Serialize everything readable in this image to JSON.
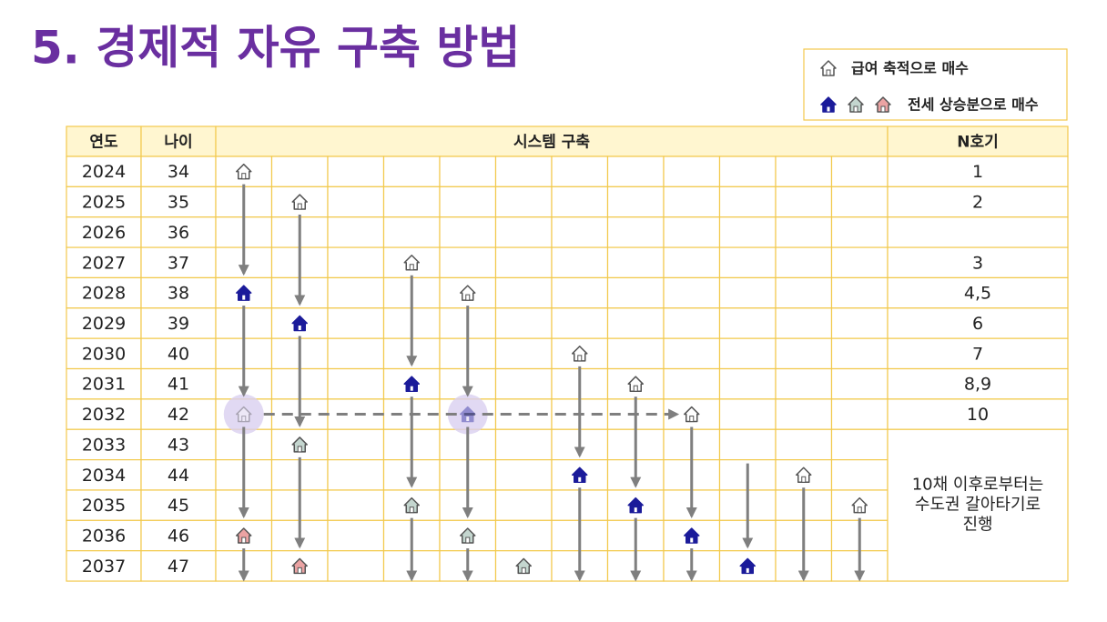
{
  "title": "5. 경제적 자유 구축 방법",
  "legend": [
    {
      "label": "급여 축적으로 매수"
    },
    {
      "label": "전세 상승분으로 매수"
    }
  ],
  "table": {
    "headers": [
      "연도",
      "나이",
      "시스템 구축",
      "N호기"
    ],
    "rows": [
      {
        "year": 2024,
        "age": 34,
        "n": "1"
      },
      {
        "year": 2025,
        "age": 35,
        "n": "2"
      },
      {
        "year": 2026,
        "age": 36
      },
      {
        "year": 2027,
        "age": 37,
        "n": "3"
      },
      {
        "year": 2028,
        "age": 38,
        "n": "4,5"
      },
      {
        "year": 2029,
        "age": 39,
        "n": "6"
      },
      {
        "year": 2030,
        "age": 40,
        "n": "7"
      },
      {
        "year": 2031,
        "age": 41,
        "n": "8,9"
      },
      {
        "year": 2032,
        "age": 42,
        "n": "10"
      },
      {
        "year": 2033,
        "age": 43
      },
      {
        "year": 2034,
        "age": 44
      },
      {
        "year": 2035,
        "age": 45
      },
      {
        "year": 2036,
        "age": 46
      },
      {
        "year": 2037,
        "age": 47
      }
    ],
    "note": [
      "10채 이후로부터는",
      "수도권 갈아타기로",
      "진행"
    ]
  }
}
